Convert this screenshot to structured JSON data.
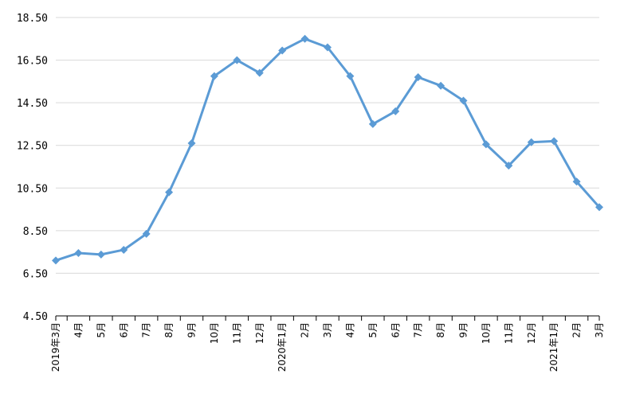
{
  "chart_data": {
    "type": "line",
    "categories": [
      "2019年3月",
      "4月",
      "5月",
      "6月",
      "7月",
      "8月",
      "9月",
      "10月",
      "11月",
      "12月",
      "2020年1月",
      "2月",
      "3月",
      "4月",
      "5月",
      "6月",
      "7月",
      "8月",
      "9月",
      "10月",
      "11月",
      "12月",
      "2021年1月",
      "2月",
      "3月"
    ],
    "series": [
      {
        "color": "#5B9BD5",
        "values": [
          7.1,
          7.45,
          7.38,
          7.6,
          8.35,
          10.3,
          12.6,
          15.75,
          16.5,
          15.9,
          16.95,
          17.5,
          17.1,
          15.75,
          13.5,
          14.1,
          15.7,
          15.3,
          14.6,
          12.55,
          11.55,
          12.65,
          12.7,
          10.8,
          9.6
        ]
      }
    ],
    "yticks": [
      "4.50",
      "6.50",
      "8.50",
      "10.50",
      "12.50",
      "14.50",
      "16.50",
      "18.50"
    ],
    "ylim": [
      4.5,
      18.5
    ],
    "grid": true,
    "gridColor": "#D9D9D9",
    "axisColor": "#000000",
    "title": "",
    "xlabel": "",
    "ylabel": ""
  }
}
